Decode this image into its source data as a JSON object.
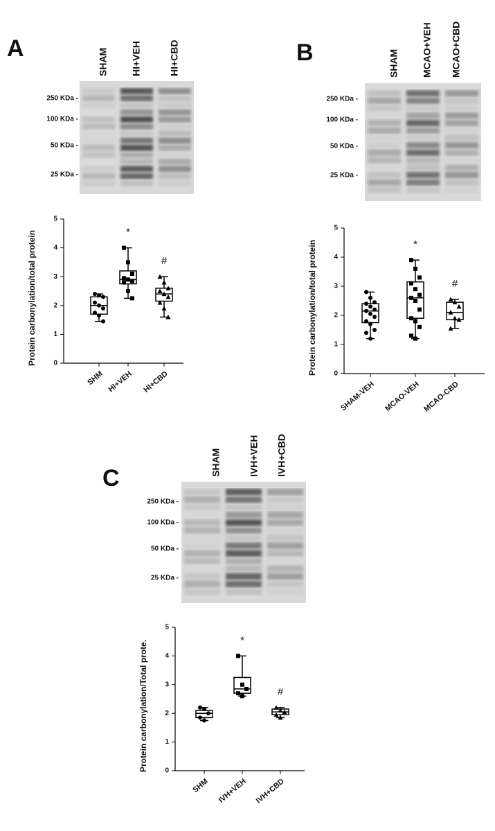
{
  "chart_data": [
    {
      "type": "box",
      "panel": "A",
      "blot": {
        "lanes": [
          "SHAM",
          "HI+VEH",
          "HI+CBD"
        ],
        "markers": [
          "250 KDa -",
          "100 KDa -",
          "50 KDa -",
          "25 KDa -"
        ]
      },
      "ylabel": "Protein carbonylation/total protein",
      "categories": [
        "SHM",
        "HI+VEH",
        "HI+CBD"
      ],
      "ylim": [
        0,
        5
      ],
      "yticks": [
        0,
        1,
        2,
        3,
        4,
        5
      ],
      "annotations": [
        null,
        "*",
        "#"
      ],
      "boxes": [
        {
          "min": 1.45,
          "q1": 1.7,
          "median": 2.0,
          "q3": 2.3,
          "max": 2.4,
          "points": [
            2.4,
            2.35,
            2.3,
            2.1,
            2.0,
            1.9,
            1.75,
            1.65,
            1.45
          ]
        },
        {
          "min": 2.25,
          "q1": 2.75,
          "median": 2.9,
          "q3": 3.2,
          "max": 4.0,
          "points": [
            4.0,
            3.5,
            3.1,
            2.95,
            2.9,
            2.85,
            2.8,
            2.5,
            2.25
          ]
        },
        {
          "min": 1.6,
          "q1": 2.15,
          "median": 2.4,
          "q3": 2.6,
          "max": 3.0,
          "points": [
            3.0,
            2.8,
            2.6,
            2.5,
            2.4,
            2.3,
            2.1,
            1.9,
            1.6
          ]
        }
      ]
    },
    {
      "type": "box",
      "panel": "B",
      "blot": {
        "lanes": [
          "SHAM",
          "MCAO+VEH",
          "MCAO+CBD"
        ],
        "markers": [
          "250 KDa -",
          "100 KDa -",
          "50 KDa -",
          "25 KDa -"
        ]
      },
      "ylabel": "Protein carbonylation/total protein",
      "categories": [
        "SHAM-VEH",
        "MCAO-VEH",
        "MCAO-CBD"
      ],
      "ylim": [
        0,
        5
      ],
      "yticks": [
        0,
        1,
        2,
        3,
        4,
        5
      ],
      "annotations": [
        null,
        "*",
        "#"
      ],
      "boxes": [
        {
          "min": 1.2,
          "q1": 1.75,
          "median": 2.15,
          "q3": 2.4,
          "max": 2.8,
          "points": [
            2.8,
            2.6,
            2.45,
            2.4,
            2.3,
            2.2,
            2.15,
            2.05,
            1.95,
            1.8,
            1.7,
            1.5,
            1.4,
            1.2
          ]
        },
        {
          "min": 1.2,
          "q1": 1.9,
          "median": 2.6,
          "q3": 3.15,
          "max": 3.9,
          "points": [
            3.9,
            3.6,
            3.3,
            3.1,
            2.9,
            2.7,
            2.6,
            2.5,
            2.2,
            1.9,
            1.8,
            1.6,
            1.3,
            1.2
          ]
        },
        {
          "min": 1.55,
          "q1": 1.85,
          "median": 2.1,
          "q3": 2.45,
          "max": 2.55,
          "points": [
            2.55,
            2.45,
            2.3,
            2.1,
            1.9,
            1.85,
            1.55
          ]
        }
      ]
    },
    {
      "type": "box",
      "panel": "C",
      "blot": {
        "lanes": [
          "SHAM",
          "IVH+VEH",
          "IVH+CBD"
        ],
        "markers": [
          "250 KDa -",
          "100 KDa -",
          "50 KDa -",
          "25 KDa -"
        ]
      },
      "ylabel": "Protein carbonylation/Total prote.",
      "categories": [
        "SHM",
        "IVH+VEH",
        "IVH+CBD"
      ],
      "ylim": [
        0,
        5
      ],
      "yticks": [
        0,
        1,
        2,
        3,
        4,
        5
      ],
      "annotations": [
        null,
        "*",
        "#"
      ],
      "boxes": [
        {
          "min": 1.75,
          "q1": 1.85,
          "median": 2.0,
          "q3": 2.1,
          "max": 2.2,
          "points": [
            2.2,
            2.15,
            2.0,
            1.85,
            1.75
          ]
        },
        {
          "min": 2.6,
          "q1": 2.7,
          "median": 2.85,
          "q3": 3.25,
          "max": 4.0,
          "points": [
            4.0,
            3.0,
            2.85,
            2.7,
            2.6
          ]
        },
        {
          "min": 1.85,
          "q1": 1.95,
          "median": 2.05,
          "q3": 2.15,
          "max": 2.2,
          "points": [
            2.2,
            2.1,
            2.05,
            1.95,
            1.85
          ]
        }
      ]
    }
  ]
}
